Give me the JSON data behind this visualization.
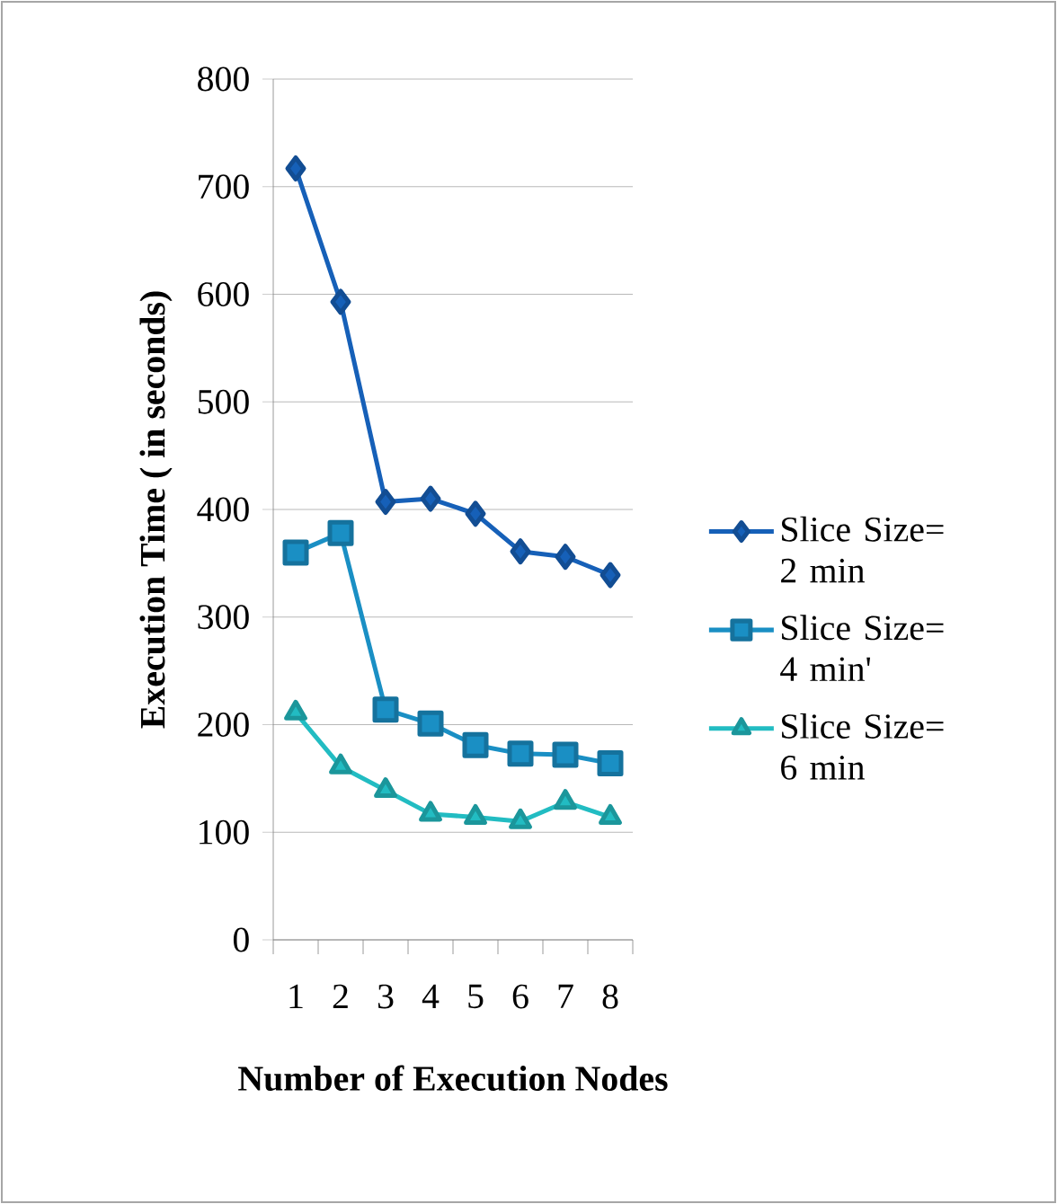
{
  "chart_data": {
    "type": "line",
    "xlabel": "Number of Execution Nodes",
    "ylabel": "Execution Time ( in seconds)",
    "categories": [
      "1",
      "2",
      "3",
      "4",
      "5",
      "6",
      "7",
      "8"
    ],
    "series": [
      {
        "name": "Slice Size= 2 min",
        "color": "#1660b8",
        "marker": "diamond",
        "values": [
          717,
          593,
          407,
          410,
          396,
          361,
          356,
          339
        ]
      },
      {
        "name": "Slice Size= 4 min'",
        "color": "#1a8fc4",
        "marker": "square",
        "values": [
          360,
          378,
          214,
          201,
          181,
          173,
          172,
          164
        ]
      },
      {
        "name": "Slice Size= 6 min",
        "color": "#22bcc2",
        "marker": "triangle",
        "values": [
          211,
          161,
          139,
          117,
          114,
          110,
          128,
          114
        ]
      }
    ],
    "ylim": [
      0,
      800
    ],
    "yticks": [
      0,
      100,
      200,
      300,
      400,
      500,
      600,
      700,
      800
    ],
    "grid": "y",
    "legend": "right",
    "line_style": "solid"
  }
}
